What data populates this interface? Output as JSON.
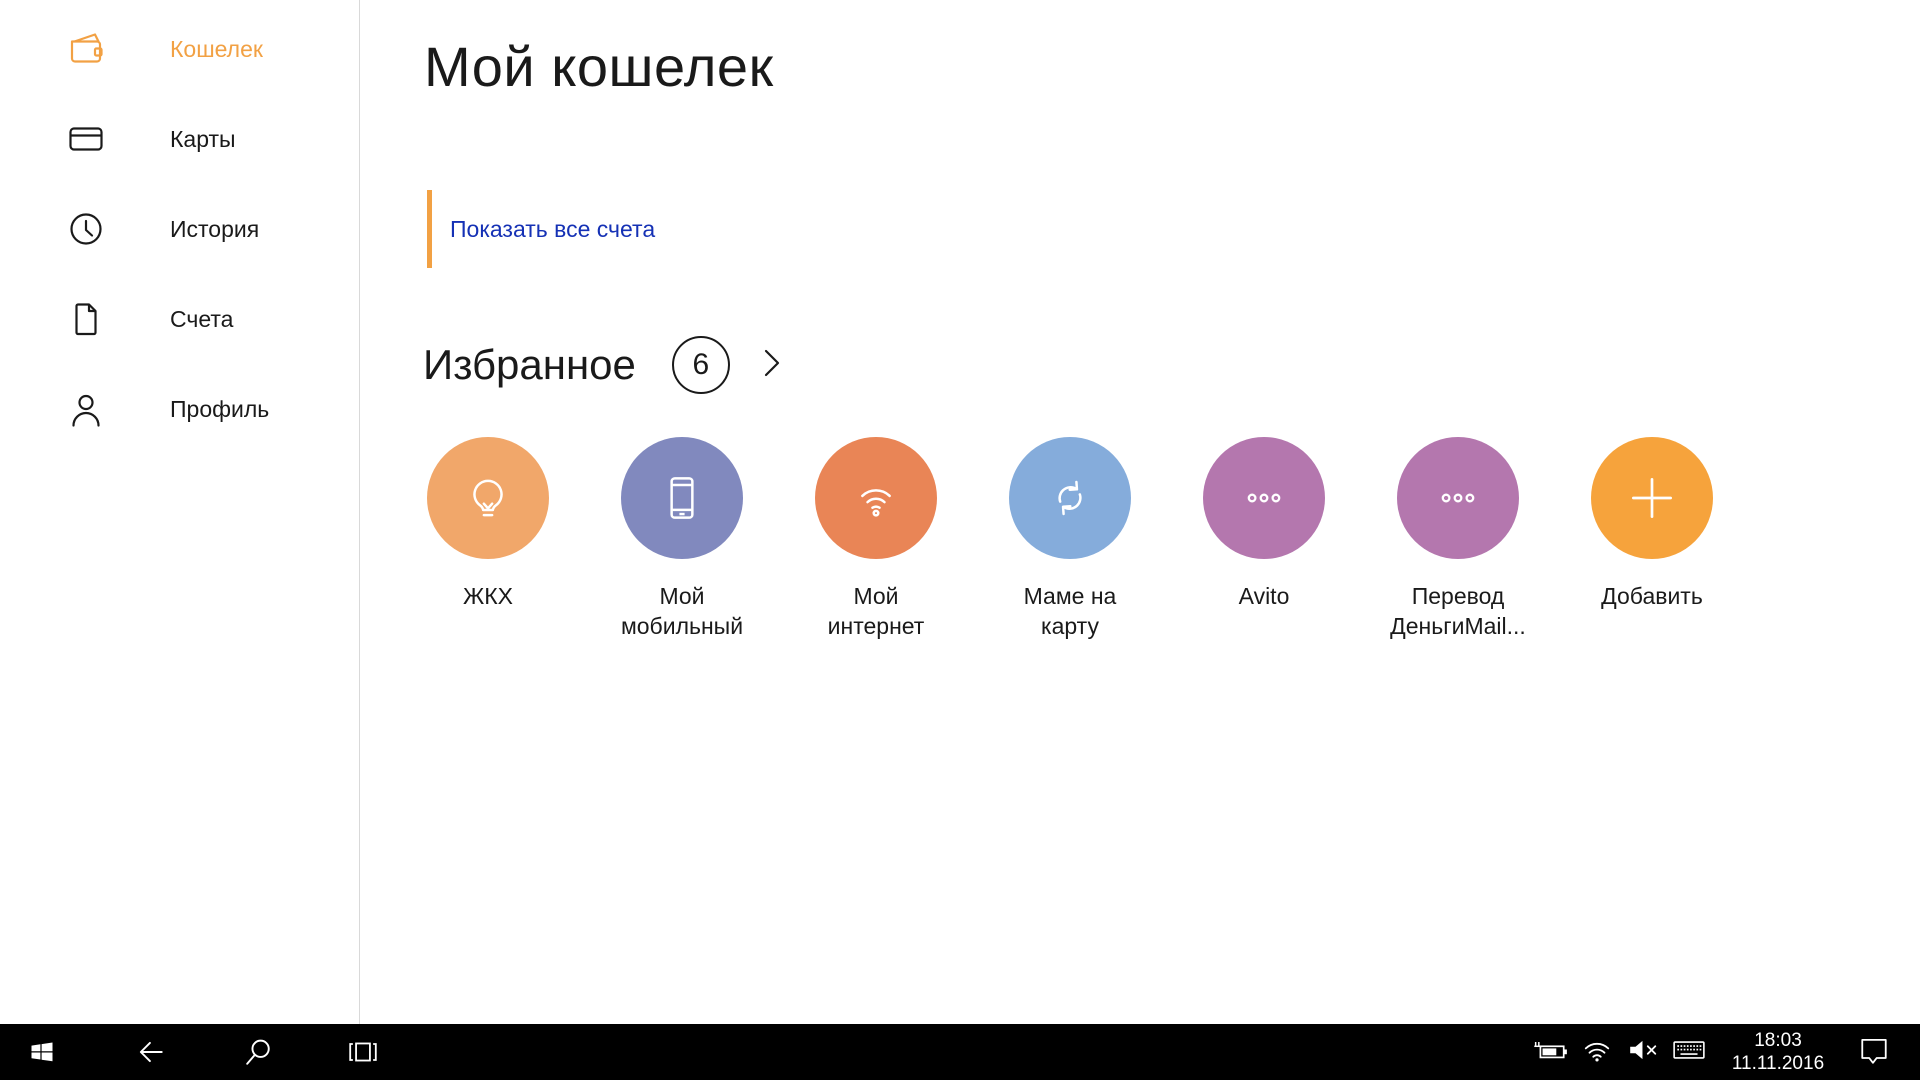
{
  "colors": {
    "accent": "#F2A144",
    "link": "#1531B5",
    "divider": "#D9D9D9",
    "taskbar_bg": "#000000",
    "text": "#1A1A1A",
    "tile_icon_fg": "#FFFFFF"
  },
  "sidebar": {
    "items": [
      {
        "id": "wallet",
        "icon": "wallet",
        "label": "Кошелек",
        "active": true
      },
      {
        "id": "cards",
        "icon": "card",
        "label": "Карты",
        "active": false
      },
      {
        "id": "history",
        "icon": "clock",
        "label": "История",
        "active": false
      },
      {
        "id": "accounts",
        "icon": "document",
        "label": "Счета",
        "active": false
      },
      {
        "id": "profile",
        "icon": "person",
        "label": "Профиль",
        "active": false
      }
    ]
  },
  "main": {
    "title": "Мой кошелек",
    "show_all_link": "Показать все счета",
    "favorites": {
      "title": "Избранное",
      "count": "6",
      "tiles": [
        {
          "id": "zhkh",
          "icon": "bulb",
          "color": "#F1A76A",
          "label_lines": [
            "ЖКХ"
          ]
        },
        {
          "id": "my-mobile",
          "icon": "phone",
          "color": "#8189BE",
          "label_lines": [
            "Мой",
            "мобильный"
          ]
        },
        {
          "id": "my-internet",
          "icon": "wifi",
          "color": "#E98556",
          "label_lines": [
            "Мой",
            "интернет"
          ]
        },
        {
          "id": "mame-na-kartu",
          "icon": "sync",
          "color": "#85ACDB",
          "label_lines": [
            "Маме на",
            "карту"
          ]
        },
        {
          "id": "avito",
          "icon": "dots",
          "color": "#B477AE",
          "label_lines": [
            "Avito"
          ]
        },
        {
          "id": "perevod-dengimail",
          "icon": "dots",
          "color": "#B477AE",
          "label_lines": [
            "Перевод",
            "ДеньгиMail..."
          ]
        }
      ],
      "add": {
        "id": "add",
        "icon": "plus",
        "color": "#F6A33C",
        "label": "Добавить"
      }
    }
  },
  "taskbar": {
    "time": "18:03",
    "date": "11.11.2016",
    "icons": [
      "start",
      "back",
      "search",
      "task-view",
      "battery-charging",
      "wifi",
      "volume-muted",
      "touch-keyboard",
      "action-center"
    ]
  }
}
